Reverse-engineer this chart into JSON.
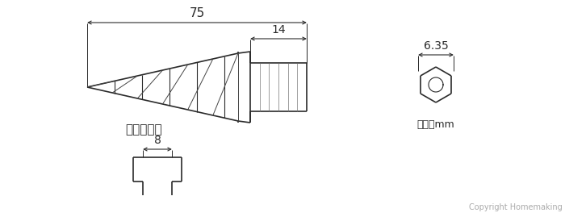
{
  "bg_color": "#ffffff",
  "line_color": "#2a2a2a",
  "text_color": "#2a2a2a",
  "title_75": "75",
  "title_14": "14",
  "title_635": "6.35",
  "label_pitch": "径間ピッチ",
  "label_8": "8",
  "label_unit": "単位：mm",
  "label_copyright": "Copyright Homemaking",
  "fig_width": 7.0,
  "fig_height": 2.69
}
